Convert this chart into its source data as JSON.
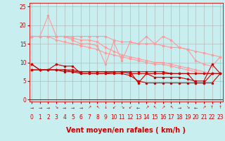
{
  "background_color": "#c8eef0",
  "grid_color": "#b0b0b0",
  "xlabel": "Vent moyen/en rafales ( km/h )",
  "xlabel_color": "#cc0000",
  "xlabel_fontsize": 7,
  "xticks": [
    0,
    1,
    2,
    3,
    4,
    5,
    6,
    7,
    8,
    9,
    10,
    11,
    12,
    13,
    14,
    15,
    16,
    17,
    18,
    19,
    20,
    21,
    22,
    23
  ],
  "yticks": [
    0,
    5,
    10,
    15,
    20,
    25
  ],
  "ylim": [
    -0.5,
    26
  ],
  "xlim": [
    -0.3,
    23.3
  ],
  "tick_color": "#cc0000",
  "tick_fontsize": 5.5,
  "line_upper1": [
    17,
    17,
    17,
    17,
    17,
    17,
    17,
    17,
    17,
    17,
    16,
    15.5,
    15.5,
    15,
    15,
    15,
    14.5,
    14,
    14,
    13.5,
    13,
    12.5,
    12,
    11.5
  ],
  "line_upper2": [
    17,
    17,
    22.5,
    17,
    17,
    16,
    15,
    15,
    14.5,
    9.5,
    15.5,
    10.5,
    15.5,
    15,
    17,
    15,
    17,
    16,
    14,
    13.5,
    10.5,
    9.5,
    9,
    11.5
  ],
  "line_mid1": [
    9.5,
    8,
    8,
    9.5,
    9,
    9,
    7,
    7,
    7,
    7,
    7.5,
    7.5,
    7.5,
    4.5,
    7,
    6,
    6,
    6,
    6,
    5.5,
    5,
    5,
    9.5,
    7
  ],
  "line_mid2": [
    9.5,
    8,
    8,
    8,
    8,
    8,
    7.5,
    7.5,
    7.5,
    7.5,
    7.5,
    7.5,
    7.5,
    7.5,
    7.5,
    7.5,
    7.5,
    7,
    7,
    7,
    7,
    7,
    7,
    7
  ],
  "line_mid3": [
    8,
    8,
    8,
    8,
    8,
    7.5,
    7.5,
    7.5,
    7.5,
    7.5,
    7.5,
    7.5,
    7,
    7,
    7,
    7,
    7,
    7,
    7,
    7,
    4.5,
    4.5,
    4.5,
    7
  ],
  "line_mid4": [
    8,
    8,
    8,
    8,
    7.5,
    7.5,
    7,
    7,
    7,
    7,
    7,
    7,
    6.5,
    5,
    4.5,
    4.5,
    4.5,
    4.5,
    4.5,
    4.5,
    4.5,
    4.5,
    7,
    7
  ],
  "line_lower1": [
    17,
    17,
    17,
    17,
    17,
    16.5,
    16,
    16,
    15.5,
    14,
    13,
    12,
    11.5,
    11,
    10.5,
    10,
    10,
    9.5,
    9,
    8.5,
    8,
    7.5,
    7,
    7
  ],
  "line_lower2": [
    17,
    17,
    17,
    16,
    15.5,
    15,
    14.5,
    14,
    13.5,
    12.5,
    12,
    11.5,
    11,
    10.5,
    10,
    9.5,
    9.5,
    9,
    8.5,
    8,
    7.5,
    7,
    7,
    7
  ],
  "color_dark_red": "#cc0000",
  "color_light_red": "#ff9999",
  "wind_arrows": [
    "→",
    "→",
    "→",
    "↘",
    "→",
    "→",
    "→",
    "↗",
    "↖",
    "↓",
    "↙",
    "↘",
    "↙",
    "←",
    "↗",
    "↖",
    "↗",
    "↖",
    "→",
    "↘",
    "←",
    "↗",
    "↑",
    "↑"
  ]
}
